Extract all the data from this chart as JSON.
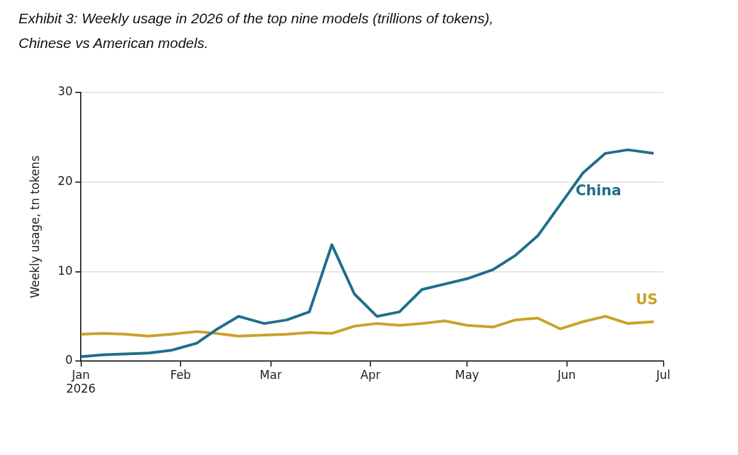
{
  "chart_data": {
    "type": "line",
    "title": "Exhibit 3: Weekly usage in 2026 of the top nine models (trillions of tokens), Chinese vs American models.",
    "ylabel": "Weekly usage, tn tokens",
    "x": [
      "2026-01-01",
      "2026-01-08",
      "2026-01-15",
      "2026-01-22",
      "2026-01-29",
      "2026-02-06",
      "2026-02-12",
      "2026-02-19",
      "2026-02-27",
      "2026-03-06",
      "2026-03-13",
      "2026-03-20",
      "2026-03-27",
      "2026-04-03",
      "2026-04-10",
      "2026-04-17",
      "2026-04-24",
      "2026-05-01",
      "2026-05-09",
      "2026-05-16",
      "2026-05-23",
      "2026-05-30",
      "2026-06-06",
      "2026-06-13",
      "2026-06-20",
      "2026-06-28"
    ],
    "series": [
      {
        "name": "China",
        "color": "#1f6e8c",
        "values": [
          0.5,
          0.7,
          0.8,
          0.9,
          1.2,
          2.0,
          3.5,
          5.0,
          4.2,
          4.6,
          5.5,
          13.0,
          7.5,
          5.0,
          5.5,
          8.0,
          8.6,
          9.2,
          10.2,
          11.8,
          14.0,
          17.5,
          21.0,
          23.2,
          23.6,
          23.2
        ]
      },
      {
        "name": "US",
        "color": "#cba12b",
        "values": [
          3.0,
          3.1,
          3.0,
          2.8,
          3.0,
          3.3,
          3.1,
          2.8,
          2.9,
          3.0,
          3.2,
          3.1,
          3.9,
          4.2,
          4.0,
          4.2,
          4.5,
          4.0,
          3.8,
          4.6,
          4.8,
          3.6,
          4.4,
          5.0,
          4.2,
          4.4
        ]
      }
    ],
    "xlim": [
      "2026-01-01",
      "2026-07-01"
    ],
    "xticks": [
      {
        "value": "2026-01-01",
        "label": "Jan\n2026"
      },
      {
        "value": "2026-02-01",
        "label": "Feb"
      },
      {
        "value": "2026-03-01",
        "label": "Mar"
      },
      {
        "value": "2026-04-01",
        "label": "Apr"
      },
      {
        "value": "2026-05-01",
        "label": "May"
      },
      {
        "value": "2026-06-01",
        "label": "Jun"
      },
      {
        "value": "2026-07-01",
        "label": "Jul"
      }
    ],
    "ylim": [
      0,
      30
    ],
    "yticks": [
      0,
      10,
      20,
      30
    ],
    "grid": "y"
  }
}
